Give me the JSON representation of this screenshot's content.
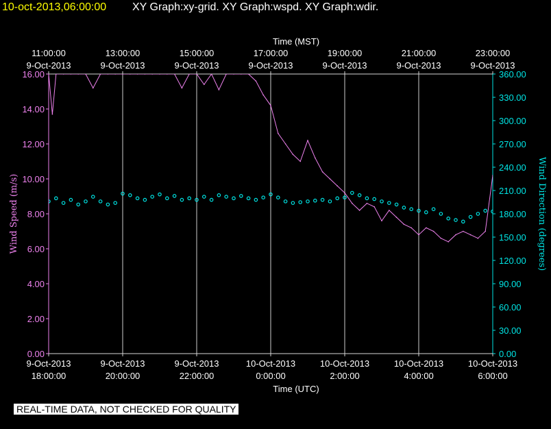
{
  "header": {
    "timestamp": "10-oct-2013,06:00:00",
    "graphs": "XY Graph:xy-grid.  XY Graph:wspd.  XY Graph:wdir."
  },
  "notice": "REAL-TIME DATA, NOT CHECKED FOR QUALITY",
  "colors": {
    "background": "#000000",
    "axis": "#d8d8d8",
    "grid": "#cfcfcf",
    "wind_speed": "#ee82ee",
    "wind_direction": "#00e5e5",
    "timestamp": "#ffff00",
    "text": "#ffffff"
  },
  "chart_data": {
    "type": "line",
    "title_top": "Time (MST)",
    "xlabel": "Time (UTC)",
    "ylabel_left": "Wind Speed (m/s)",
    "ylabel_right": "Wind Direction (degrees)",
    "xlim_hours_utc": [
      18,
      30
    ],
    "ylim_left": [
      0,
      16
    ],
    "ylim_right": [
      0,
      360
    ],
    "grid": "vertical lines at each 2-hour tick",
    "yticks_left": [
      "0.00",
      "2.00",
      "4.00",
      "6.00",
      "8.00",
      "10.00",
      "12.00",
      "14.00",
      "16.00"
    ],
    "yticks_right": [
      "0.00",
      "30.00",
      "60.00",
      "90.00",
      "120.00",
      "150.00",
      "180.00",
      "210.00",
      "240.00",
      "270.00",
      "300.00",
      "330.00",
      "360.00"
    ],
    "top_ticks": [
      {
        "hour": 18,
        "time": "11:00:00",
        "date": "9-Oct-2013"
      },
      {
        "hour": 20,
        "time": "13:00:00",
        "date": "9-Oct-2013"
      },
      {
        "hour": 22,
        "time": "15:00:00",
        "date": "9-Oct-2013"
      },
      {
        "hour": 24,
        "time": "17:00:00",
        "date": "9-Oct-2013"
      },
      {
        "hour": 26,
        "time": "19:00:00",
        "date": "9-Oct-2013"
      },
      {
        "hour": 28,
        "time": "21:00:00",
        "date": "9-Oct-2013"
      },
      {
        "hour": 30,
        "time": "23:00:00",
        "date": "9-Oct-2013"
      }
    ],
    "bottom_ticks": [
      {
        "hour": 18,
        "date": "9-Oct-2013",
        "time": "18:00:00"
      },
      {
        "hour": 20,
        "date": "9-Oct-2013",
        "time": "20:00:00"
      },
      {
        "hour": 22,
        "date": "9-Oct-2013",
        "time": "22:00:00"
      },
      {
        "hour": 24,
        "date": "10-Oct-2013",
        "time": "0:00:00"
      },
      {
        "hour": 26,
        "date": "10-Oct-2013",
        "time": "2:00:00"
      },
      {
        "hour": 28,
        "date": "10-Oct-2013",
        "time": "4:00:00"
      },
      {
        "hour": 30,
        "date": "10-Oct-2013",
        "time": "6:00:00"
      }
    ],
    "series": [
      {
        "name": "Wind Speed (m/s)",
        "axis": "left",
        "style": "line",
        "x": [
          18.0,
          18.1,
          18.2,
          18.4,
          18.6,
          18.8,
          19.0,
          19.2,
          19.4,
          19.6,
          19.8,
          20.0,
          20.2,
          20.4,
          20.6,
          20.8,
          21.0,
          21.2,
          21.4,
          21.6,
          21.8,
          22.0,
          22.2,
          22.4,
          22.6,
          22.8,
          23.0,
          23.2,
          23.4,
          23.6,
          23.8,
          24.0,
          24.2,
          24.4,
          24.6,
          24.8,
          25.0,
          25.2,
          25.4,
          25.6,
          25.8,
          26.0,
          26.2,
          26.4,
          26.6,
          26.8,
          27.0,
          27.2,
          27.4,
          27.6,
          27.8,
          28.0,
          28.2,
          28.4,
          28.6,
          28.8,
          29.0,
          29.2,
          29.4,
          29.6,
          29.8,
          30.0
        ],
        "values": [
          16.0,
          13.7,
          16.0,
          16.0,
          16.0,
          16.0,
          16.0,
          15.2,
          16.0,
          16.0,
          16.0,
          16.0,
          16.0,
          16.0,
          16.0,
          16.0,
          16.0,
          16.0,
          16.0,
          15.2,
          16.0,
          16.0,
          15.4,
          16.0,
          15.1,
          16.0,
          16.0,
          16.0,
          16.0,
          15.6,
          14.8,
          14.2,
          12.6,
          12.0,
          11.4,
          11.0,
          12.2,
          11.2,
          10.4,
          10.0,
          9.6,
          9.2,
          8.6,
          8.2,
          8.6,
          8.4,
          7.6,
          8.2,
          7.8,
          7.4,
          7.2,
          6.8,
          7.2,
          7.0,
          6.6,
          6.4,
          6.8,
          7.0,
          6.8,
          6.6,
          7.0,
          10.2
        ]
      },
      {
        "name": "Wind Direction (degrees)",
        "axis": "right",
        "style": "markers",
        "x": [
          18.0,
          18.2,
          18.4,
          18.6,
          18.8,
          19.0,
          19.2,
          19.4,
          19.6,
          19.8,
          20.0,
          20.2,
          20.4,
          20.6,
          20.8,
          21.0,
          21.2,
          21.4,
          21.6,
          21.8,
          22.0,
          22.2,
          22.4,
          22.6,
          22.8,
          23.0,
          23.2,
          23.4,
          23.6,
          23.8,
          24.0,
          24.2,
          24.4,
          24.6,
          24.8,
          25.0,
          25.2,
          25.4,
          25.6,
          25.8,
          26.0,
          26.2,
          26.4,
          26.6,
          26.8,
          27.0,
          27.2,
          27.4,
          27.6,
          27.8,
          28.0,
          28.2,
          28.4,
          28.6,
          28.8,
          29.0,
          29.2,
          29.4,
          29.6,
          29.8,
          30.0
        ],
        "values": [
          196,
          200,
          194,
          198,
          192,
          196,
          202,
          196,
          192,
          194,
          206,
          204,
          200,
          198,
          202,
          205,
          200,
          203,
          198,
          200,
          198,
          202,
          198,
          204,
          202,
          200,
          203,
          200,
          198,
          201,
          205,
          201,
          196,
          194,
          195,
          196,
          197,
          198,
          196,
          200,
          201,
          207,
          204,
          200,
          199,
          196,
          194,
          192,
          188,
          186,
          184,
          182,
          186,
          180,
          174,
          172,
          170,
          176,
          180,
          184,
          183
        ]
      }
    ]
  }
}
